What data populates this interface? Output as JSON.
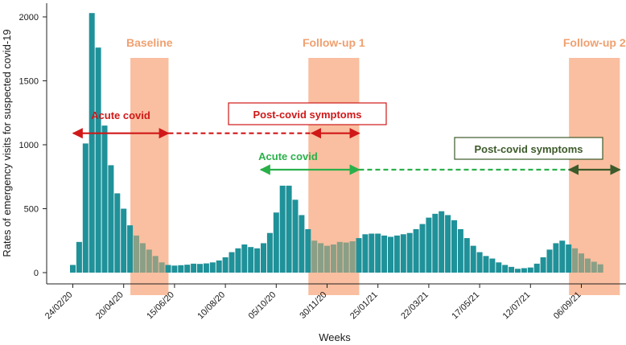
{
  "chart_data": {
    "type": "bar",
    "title": "",
    "xlabel": "Weeks",
    "ylabel": "Rates of emergency visits for suspected covid-19",
    "ylim": [
      0,
      2100
    ],
    "yticks": [
      0,
      500,
      1000,
      1500,
      2000
    ],
    "x_tick_labels": [
      "24/02/20",
      "20/04/20",
      "15/06/20",
      "10/08/20",
      "05/10/20",
      "30/11/20",
      "25/01/21",
      "22/03/21",
      "17/05/21",
      "12/07/21",
      "06/09/21"
    ],
    "x_tick_week_index": [
      0,
      8,
      16,
      24,
      32,
      40,
      48,
      56,
      64,
      72,
      80
    ],
    "bar_color": "#1f9199",
    "shaded_bar_color": "#8a9f86",
    "shade_color": "#f9bfa0",
    "values": [
      60,
      240,
      1010,
      2030,
      1760,
      1150,
      840,
      620,
      500,
      370,
      290,
      230,
      180,
      130,
      80,
      60,
      55,
      58,
      62,
      70,
      68,
      72,
      80,
      95,
      120,
      160,
      190,
      220,
      200,
      190,
      230,
      310,
      470,
      680,
      680,
      570,
      450,
      340,
      250,
      230,
      210,
      220,
      240,
      235,
      245,
      270,
      300,
      305,
      305,
      290,
      280,
      290,
      300,
      310,
      340,
      380,
      430,
      460,
      480,
      450,
      410,
      340,
      270,
      210,
      160,
      130,
      110,
      80,
      60,
      45,
      30,
      35,
      40,
      70,
      120,
      180,
      230,
      250,
      220,
      190,
      150,
      110,
      85,
      65
    ]
  },
  "periods": [
    {
      "label": "Baseline",
      "start_week": 9.5,
      "end_week": 15.5
    },
    {
      "label": "Follow-up 1",
      "start_week": 37.5,
      "end_week": 45.5
    },
    {
      "label": "Follow-up 2",
      "start_week": 78.5,
      "end_week": 86.5
    }
  ],
  "annotations": {
    "wave1_acute": {
      "label": "Acute covid",
      "color": "#d01818",
      "start_week": 0.5,
      "end_week": 15.5,
      "y": 1090
    },
    "wave1_dashed": {
      "color": "#d01818",
      "start_week": 15.5,
      "end_week": 38,
      "y": 1090
    },
    "wave1_post": {
      "label": "Post-covid symptoms",
      "color": "#d01818",
      "start_week": 38,
      "end_week": 45.5,
      "y": 1090
    },
    "wave2_acute": {
      "label": "Acute covid",
      "color": "#2ab04a",
      "start_week": 30,
      "end_week": 45.5,
      "y": 805
    },
    "wave2_dashed": {
      "color": "#2ab04a",
      "start_week": 45.5,
      "end_week": 78.5,
      "y": 805
    },
    "wave2_post": {
      "label": "Post-covid symptoms",
      "color": "#3d5a2a",
      "start_week": 78.5,
      "end_week": 86.5,
      "y": 805
    }
  }
}
